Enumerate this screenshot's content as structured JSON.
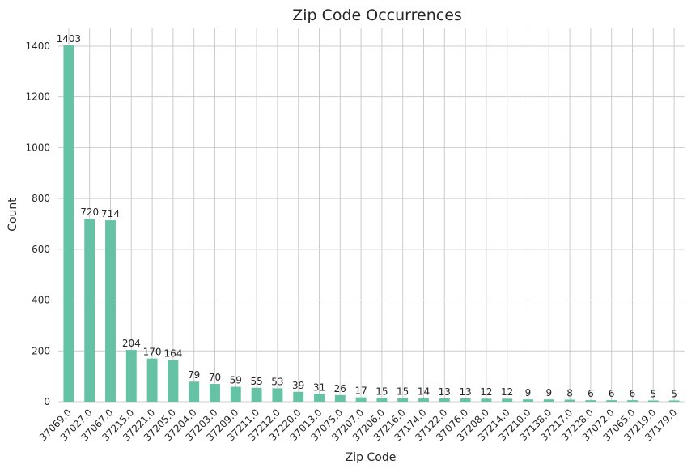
{
  "chart_data": {
    "type": "bar",
    "title": "Zip Code Occurrences",
    "xlabel": "Zip Code",
    "ylabel": "Count",
    "ylim": [
      0,
      1470
    ],
    "yticks": [
      0,
      200,
      400,
      600,
      800,
      1000,
      1200,
      1400
    ],
    "grid": true,
    "legend": "none",
    "bar_color": "#66c2a5",
    "categories": [
      "37069.0",
      "37027.0",
      "37067.0",
      "37215.0",
      "37221.0",
      "37205.0",
      "37204.0",
      "37203.0",
      "37209.0",
      "37211.0",
      "37212.0",
      "37220.0",
      "37013.0",
      "37075.0",
      "37207.0",
      "37206.0",
      "37216.0",
      "37174.0",
      "37122.0",
      "37076.0",
      "37208.0",
      "37214.0",
      "37210.0",
      "37138.0",
      "37217.0",
      "37228.0",
      "37072.0",
      "37065.0",
      "37219.0",
      "37179.0"
    ],
    "values": [
      1403,
      720,
      714,
      204,
      170,
      164,
      79,
      70,
      59,
      55,
      53,
      39,
      31,
      26,
      17,
      15,
      15,
      14,
      13,
      13,
      12,
      12,
      9,
      9,
      8,
      6,
      6,
      6,
      5,
      5
    ]
  }
}
